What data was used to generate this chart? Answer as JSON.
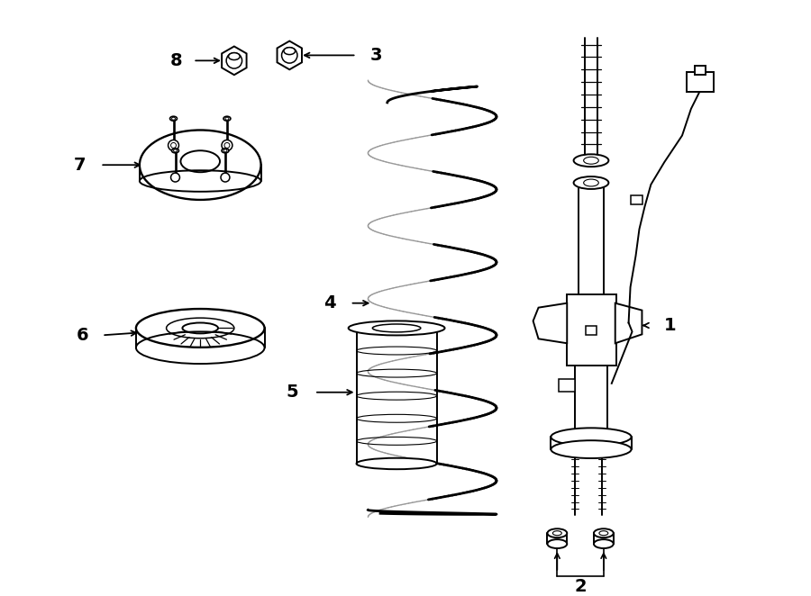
{
  "background_color": "#ffffff",
  "line_color": "#000000",
  "figure_width": 9.0,
  "figure_height": 6.62,
  "dpi": 100,
  "label_fontsize": 14,
  "label_fontweight": "bold",
  "lw_main": 1.4,
  "lw_thick": 2.0
}
